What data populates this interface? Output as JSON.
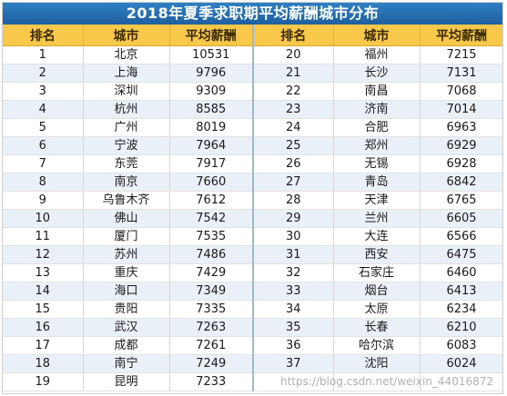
{
  "title": "2018年夏季求职期平均薪酬城市分布",
  "headers": {
    "rank": "排名",
    "city": "城市",
    "salary": "平均薪酬"
  },
  "left": [
    {
      "rank": "1",
      "city": "北京",
      "salary": "10531"
    },
    {
      "rank": "2",
      "city": "上海",
      "salary": "9796"
    },
    {
      "rank": "3",
      "city": "深圳",
      "salary": "9309"
    },
    {
      "rank": "4",
      "city": "杭州",
      "salary": "8585"
    },
    {
      "rank": "5",
      "city": "广州",
      "salary": "8019"
    },
    {
      "rank": "6",
      "city": "宁波",
      "salary": "7964"
    },
    {
      "rank": "7",
      "city": "东莞",
      "salary": "7917"
    },
    {
      "rank": "8",
      "city": "南京",
      "salary": "7660"
    },
    {
      "rank": "9",
      "city": "乌鲁木齐",
      "salary": "7612"
    },
    {
      "rank": "10",
      "city": "佛山",
      "salary": "7542"
    },
    {
      "rank": "11",
      "city": "厦门",
      "salary": "7535"
    },
    {
      "rank": "12",
      "city": "苏州",
      "salary": "7486"
    },
    {
      "rank": "13",
      "city": "重庆",
      "salary": "7429"
    },
    {
      "rank": "14",
      "city": "海口",
      "salary": "7349"
    },
    {
      "rank": "15",
      "city": "贵阳",
      "salary": "7335"
    },
    {
      "rank": "16",
      "city": "武汉",
      "salary": "7263"
    },
    {
      "rank": "17",
      "city": "成都",
      "salary": "7261"
    },
    {
      "rank": "18",
      "city": "南宁",
      "salary": "7249"
    },
    {
      "rank": "19",
      "city": "昆明",
      "salary": "7233"
    }
  ],
  "right": [
    {
      "rank": "20",
      "city": "福州",
      "salary": "7215"
    },
    {
      "rank": "21",
      "city": "长沙",
      "salary": "7131"
    },
    {
      "rank": "22",
      "city": "南昌",
      "salary": "7068"
    },
    {
      "rank": "23",
      "city": "济南",
      "salary": "7014"
    },
    {
      "rank": "24",
      "city": "合肥",
      "salary": "6963"
    },
    {
      "rank": "25",
      "city": "郑州",
      "salary": "6929"
    },
    {
      "rank": "26",
      "city": "无锡",
      "salary": "6928"
    },
    {
      "rank": "27",
      "city": "青岛",
      "salary": "6842"
    },
    {
      "rank": "28",
      "city": "天津",
      "salary": "6765"
    },
    {
      "rank": "29",
      "city": "兰州",
      "salary": "6605"
    },
    {
      "rank": "30",
      "city": "大连",
      "salary": "6566"
    },
    {
      "rank": "31",
      "city": "西安",
      "salary": "6475"
    },
    {
      "rank": "32",
      "city": "石家庄",
      "salary": "6460"
    },
    {
      "rank": "33",
      "city": "烟台",
      "salary": "6413"
    },
    {
      "rank": "34",
      "city": "太原",
      "salary": "6234"
    },
    {
      "rank": "35",
      "city": "长春",
      "salary": "6210"
    },
    {
      "rank": "36",
      "city": "哈尔滨",
      "salary": "6083"
    },
    {
      "rank": "37",
      "city": "沈阳",
      "salary": "6024"
    },
    {
      "rank": "",
      "city": "",
      "salary": ""
    }
  ],
  "watermark": "https://blog.csdn.net/weixin_44016872"
}
